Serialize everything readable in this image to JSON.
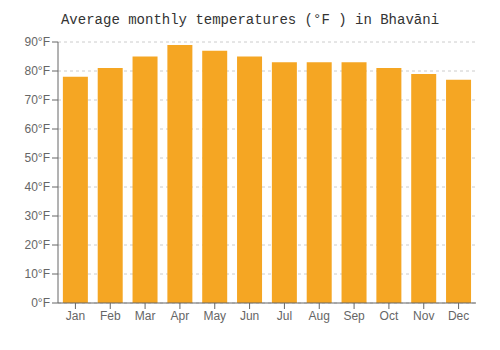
{
  "chart_data": {
    "type": "bar",
    "title": "Average monthly temperatures (°F ) in Bhavāni",
    "categories": [
      "Jan",
      "Feb",
      "Mar",
      "Apr",
      "May",
      "Jun",
      "Jul",
      "Aug",
      "Sep",
      "Oct",
      "Nov",
      "Dec"
    ],
    "values": [
      78,
      81,
      85,
      89,
      87,
      85,
      83,
      83,
      83,
      81,
      79,
      77
    ],
    "color": "#F5A623",
    "ylim": [
      0,
      90
    ],
    "yticks": [
      {
        "value": 0,
        "label": "0°F"
      },
      {
        "value": 10,
        "label": "10°F"
      },
      {
        "value": 20,
        "label": "20°F"
      },
      {
        "value": 30,
        "label": "30°F"
      },
      {
        "value": 40,
        "label": "40°F"
      },
      {
        "value": 50,
        "label": "50°F"
      },
      {
        "value": 60,
        "label": "60°F"
      },
      {
        "value": 70,
        "label": "70°F"
      },
      {
        "value": 80,
        "label": "80°F"
      },
      {
        "value": 90,
        "label": "90°F"
      }
    ],
    "grid": true
  }
}
